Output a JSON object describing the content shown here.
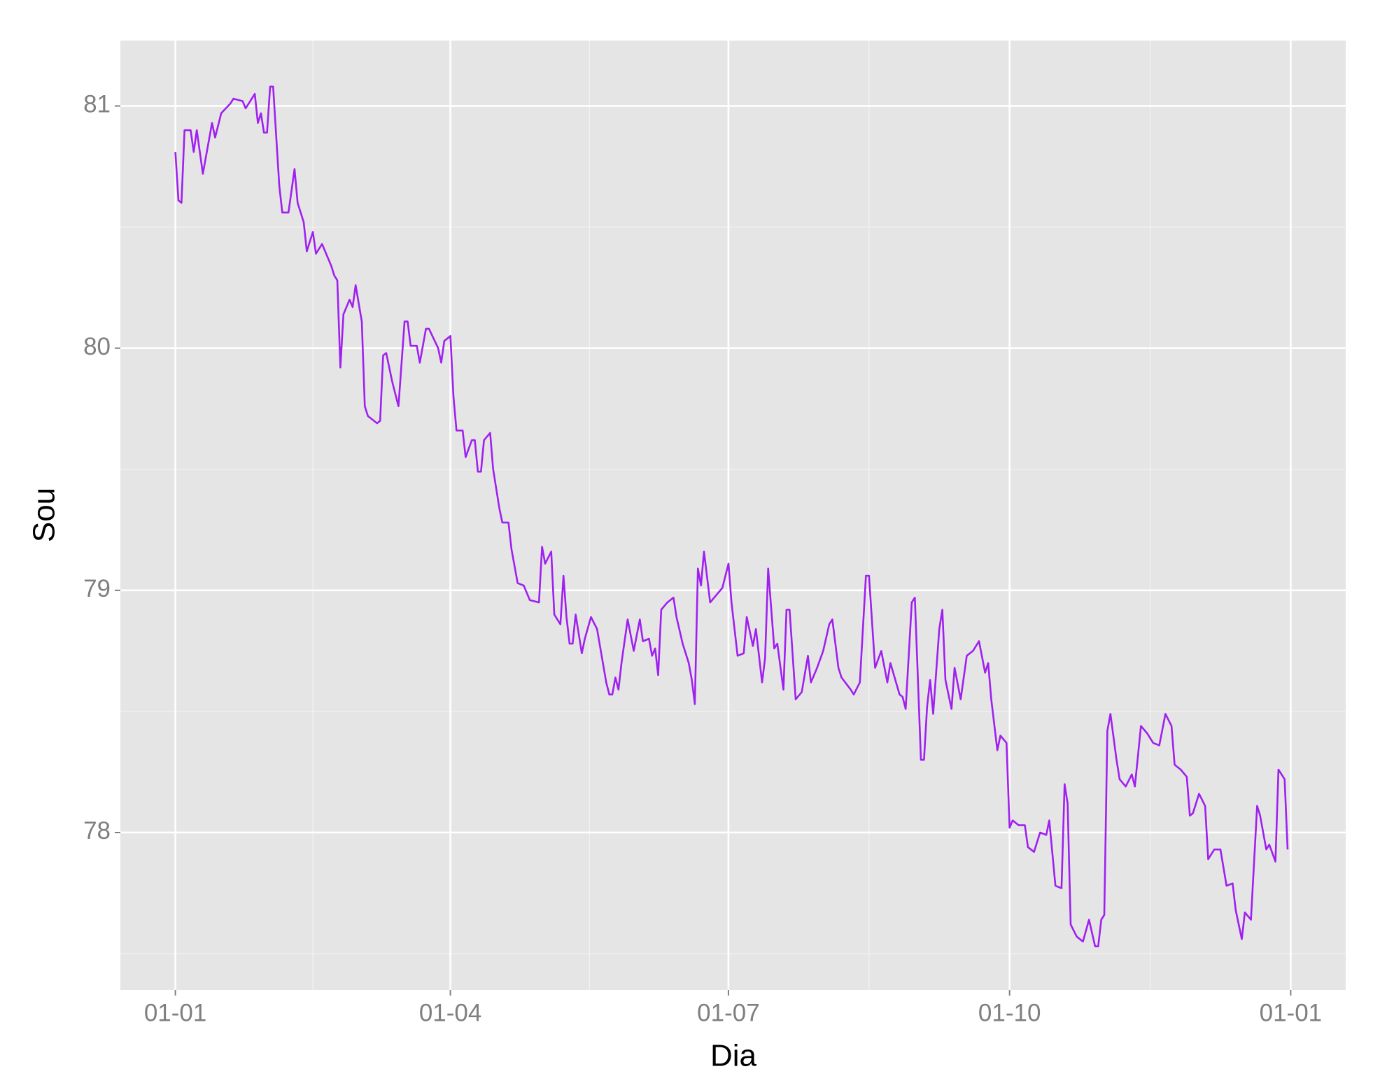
{
  "chart_data": {
    "type": "line",
    "x_label": "Dia",
    "y_label": "Sou",
    "x": [
      0,
      1,
      2,
      3,
      5,
      6,
      7,
      9,
      12,
      13,
      15,
      18,
      19,
      22,
      23,
      26,
      27,
      28,
      29,
      30,
      31,
      32,
      34,
      35,
      37,
      39,
      40,
      42,
      43,
      45,
      46,
      48,
      51,
      52,
      53,
      54,
      55,
      57,
      58,
      59,
      61,
      62,
      63,
      66,
      67,
      68,
      69,
      71,
      73,
      75,
      76,
      77,
      79,
      80,
      82,
      83,
      86,
      87,
      88,
      90,
      91,
      92,
      94,
      95,
      97,
      98,
      99,
      100,
      101,
      103,
      104,
      106,
      107,
      109,
      110,
      112,
      114,
      116,
      119,
      120,
      121,
      123,
      124,
      126,
      127,
      128,
      129,
      130,
      131,
      133,
      134,
      136,
      138,
      141,
      142,
      143,
      144,
      145,
      146,
      148,
      150,
      152,
      153,
      155,
      156,
      157,
      158,
      159,
      161,
      163,
      164,
      166,
      168,
      169,
      170,
      171,
      172,
      173,
      175,
      177,
      179,
      181,
      182,
      184,
      186,
      187,
      189,
      190,
      192,
      193,
      194,
      196,
      197,
      199,
      200,
      201,
      203,
      205,
      207,
      208,
      210,
      212,
      214,
      215,
      217,
      218,
      221,
      222,
      224,
      226,
      227,
      229,
      231,
      233,
      234,
      237,
      238,
      239,
      241,
      242,
      244,
      245,
      246,
      247,
      248,
      250,
      251,
      252,
      254,
      255,
      257,
      259,
      261,
      263,
      265,
      266,
      267,
      269,
      270,
      272,
      273,
      274,
      276,
      278,
      279,
      281,
      283,
      285,
      286,
      288,
      290,
      291,
      292,
      293,
      295,
      297,
      299,
      301,
      302,
      303,
      304,
      305,
      306,
      308,
      309,
      311,
      313,
      314,
      316,
      318,
      320,
      322,
      324,
      326,
      327,
      329,
      331,
      332,
      333,
      335,
      337,
      338,
      340,
      342,
      344,
      346,
      347,
      349,
      350,
      352,
      354,
      355,
      357,
      358,
      360,
      361,
      363,
      364
    ],
    "values": [
      80.81,
      80.61,
      80.6,
      80.9,
      80.9,
      80.81,
      80.9,
      80.72,
      80.93,
      80.87,
      80.97,
      81.01,
      81.03,
      81.02,
      80.99,
      81.05,
      80.93,
      80.97,
      80.89,
      80.89,
      81.08,
      81.08,
      80.67,
      80.56,
      80.56,
      80.74,
      80.6,
      80.52,
      80.4,
      80.48,
      80.39,
      80.43,
      80.34,
      80.3,
      80.28,
      79.92,
      80.14,
      80.2,
      80.17,
      80.26,
      80.11,
      79.76,
      79.72,
      79.69,
      79.7,
      79.97,
      79.98,
      79.86,
      79.76,
      80.11,
      80.11,
      80.01,
      80.01,
      79.94,
      80.08,
      80.08,
      80.0,
      79.94,
      80.03,
      80.05,
      79.8,
      79.66,
      79.66,
      79.55,
      79.62,
      79.62,
      79.49,
      79.49,
      79.62,
      79.65,
      79.5,
      79.34,
      79.28,
      79.28,
      79.17,
      79.03,
      79.02,
      78.96,
      78.95,
      79.18,
      79.11,
      79.16,
      78.9,
      78.86,
      79.06,
      78.89,
      78.78,
      78.78,
      78.9,
      78.74,
      78.8,
      78.89,
      78.84,
      78.62,
      78.57,
      78.57,
      78.64,
      78.59,
      78.7,
      78.88,
      78.75,
      78.88,
      78.79,
      78.8,
      78.73,
      78.76,
      78.65,
      78.92,
      78.95,
      78.97,
      78.89,
      78.78,
      78.7,
      78.63,
      78.53,
      79.09,
      79.02,
      79.16,
      78.95,
      78.98,
      79.01,
      79.11,
      78.95,
      78.73,
      78.74,
      78.89,
      78.77,
      78.84,
      78.62,
      78.72,
      79.09,
      78.76,
      78.78,
      78.59,
      78.92,
      78.92,
      78.55,
      78.58,
      78.73,
      78.62,
      78.68,
      78.75,
      78.86,
      78.88,
      78.68,
      78.64,
      78.59,
      78.57,
      78.62,
      79.06,
      79.06,
      78.68,
      78.75,
      78.62,
      78.7,
      78.57,
      78.56,
      78.51,
      78.95,
      78.97,
      78.3,
      78.3,
      78.52,
      78.63,
      78.49,
      78.84,
      78.92,
      78.63,
      78.51,
      78.68,
      78.55,
      78.73,
      78.75,
      78.79,
      78.66,
      78.7,
      78.55,
      78.34,
      78.4,
      78.37,
      78.02,
      78.05,
      78.03,
      78.03,
      77.94,
      77.92,
      78.0,
      77.99,
      78.05,
      77.78,
      77.77,
      78.2,
      78.12,
      77.62,
      77.57,
      77.55,
      77.64,
      77.53,
      77.53,
      77.64,
      77.66,
      78.42,
      78.49,
      78.3,
      78.22,
      78.19,
      78.24,
      78.19,
      78.44,
      78.41,
      78.37,
      78.36,
      78.49,
      78.44,
      78.28,
      78.26,
      78.23,
      78.07,
      78.08,
      78.16,
      78.11,
      77.89,
      77.93,
      77.93,
      77.78,
      77.79,
      77.68,
      77.56,
      77.67,
      77.64,
      78.11,
      78.07,
      77.93,
      77.95,
      77.88,
      78.26,
      78.22,
      77.93
    ],
    "color": "#a020f0",
    "xlim": [
      -18,
      383
    ],
    "ylim": [
      77.35,
      81.27
    ],
    "xticks": [
      {
        "value": 0,
        "label": "01-01"
      },
      {
        "value": 90,
        "label": "01-04"
      },
      {
        "value": 181,
        "label": "01-07"
      },
      {
        "value": 273,
        "label": "01-10"
      },
      {
        "value": 365,
        "label": "01-01"
      }
    ],
    "yticks": [
      78,
      79,
      80,
      81
    ],
    "grid": true
  }
}
